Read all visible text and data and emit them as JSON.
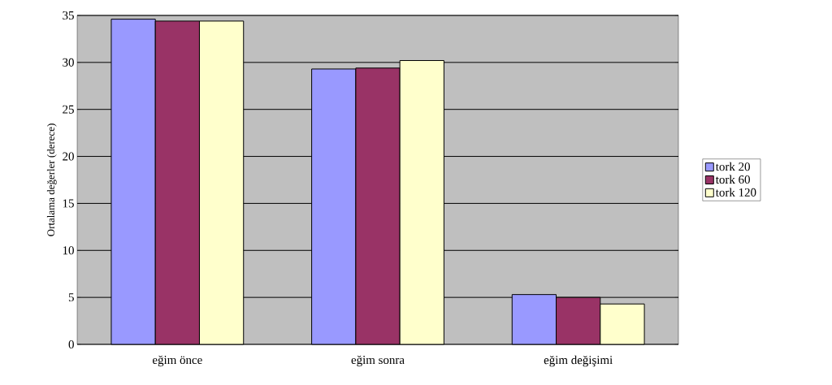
{
  "chart_data": {
    "type": "bar",
    "ylabel": "Ortalama değerler (derece)",
    "categories": [
      "eğim önce",
      "eğim sonra",
      "eğim değişimi"
    ],
    "series": [
      {
        "name": "tork 20",
        "color": "#9999ff",
        "values": [
          34.6,
          29.3,
          5.3
        ]
      },
      {
        "name": "tork 60",
        "color": "#993366",
        "values": [
          34.4,
          29.4,
          5.0
        ]
      },
      {
        "name": "tork 120",
        "color": "#ffffcc",
        "values": [
          34.4,
          30.2,
          4.3
        ]
      }
    ],
    "ylim": [
      0,
      35
    ],
    "yticks": [
      0,
      5,
      10,
      15,
      20,
      25,
      30,
      35
    ],
    "grid": "y",
    "legend": "right"
  }
}
